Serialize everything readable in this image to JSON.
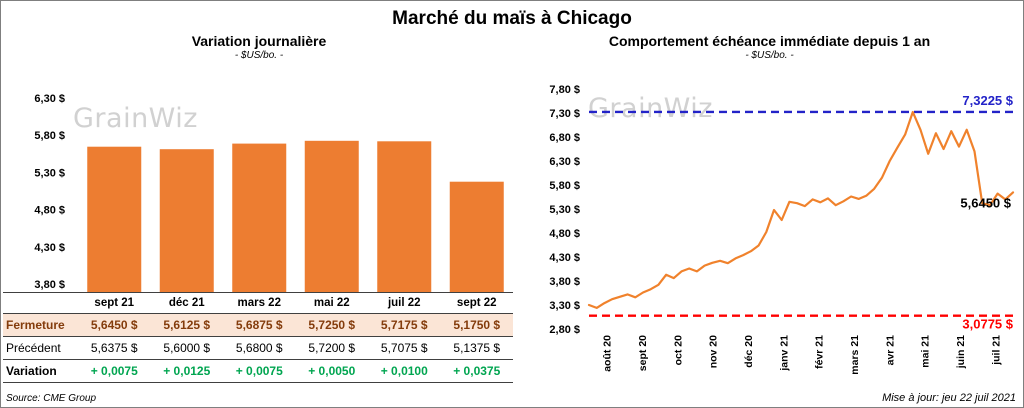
{
  "page": {
    "title": "Marché du maïs à Chicago",
    "source": "Source: CME Group",
    "updated": "Mise à jour: jeu 22 juil 2021",
    "watermark": "GrainWiz"
  },
  "colors": {
    "accent_orange": "#ED7D31",
    "close_row_bg": "#FBE5D6",
    "close_row_text": "#843C0C",
    "variation_green": "#00A550",
    "max_line_blue": "#2323C8",
    "min_line_red": "#FF0000"
  },
  "chart_data": [
    {
      "type": "bar",
      "title": "Variation journalière",
      "subtitle": "- $US/bo. -",
      "categories": [
        "sept 21",
        "déc 21",
        "mars 22",
        "mai 22",
        "juil 22",
        "sept 22"
      ],
      "values": [
        5.645,
        5.6125,
        5.6875,
        5.725,
        5.7175,
        5.175
      ],
      "ylim": [
        3.8,
        6.3
      ],
      "ytick_labels": [
        "3,80 $",
        "4,30 $",
        "4,80 $",
        "5,30 $",
        "5,80 $",
        "6,30 $"
      ],
      "bar_color": "#ED7D31",
      "grid": false,
      "legend": "none"
    },
    {
      "type": "line",
      "title": "Comportement échéance immédiate depuis 1 an",
      "subtitle": "- $US/bo. -",
      "x_labels": [
        "août 20",
        "sept 20",
        "oct 20",
        "nov 20",
        "déc 20",
        "janv 21",
        "févr 21",
        "mars 21",
        "avr 21",
        "mai 21",
        "juin 21",
        "juil 21"
      ],
      "values": [
        3.3,
        3.24,
        3.34,
        3.42,
        3.47,
        3.52,
        3.46,
        3.56,
        3.63,
        3.72,
        3.93,
        3.86,
        4.0,
        4.06,
        4.0,
        4.12,
        4.18,
        4.22,
        4.17,
        4.27,
        4.34,
        4.42,
        4.54,
        4.82,
        5.28,
        5.07,
        5.45,
        5.42,
        5.36,
        5.5,
        5.44,
        5.52,
        5.38,
        5.46,
        5.56,
        5.51,
        5.58,
        5.72,
        5.95,
        6.3,
        6.58,
        6.85,
        7.32,
        6.95,
        6.45,
        6.88,
        6.55,
        6.92,
        6.6,
        6.95,
        6.5,
        5.42,
        5.38,
        5.62,
        5.5,
        5.645
      ],
      "ylim": [
        2.8,
        7.8
      ],
      "ytick_labels": [
        "2,80 $",
        "3,30 $",
        "3,80 $",
        "4,30 $",
        "4,80 $",
        "5,30 $",
        "5,80 $",
        "6,30 $",
        "6,80 $",
        "7,30 $",
        "7,80 $"
      ],
      "line_color": "#F0822C",
      "max_line": {
        "value": 7.3225,
        "label": "7,3225 $",
        "color": "#2323C8"
      },
      "min_line": {
        "value": 3.0775,
        "label": "3,0775 $",
        "color": "#FF0000"
      },
      "last_point_label": "5,6450 $",
      "grid": false,
      "legend": "none"
    }
  ],
  "table": {
    "header": [
      "sept 21",
      "déc 21",
      "mars 22",
      "mai 22",
      "juil 22",
      "sept 22"
    ],
    "rows": [
      {
        "label": "Fermeture",
        "style": "close",
        "values": [
          "5,6450  $",
          "5,6125  $",
          "5,6875  $",
          "5,7250  $",
          "5,7175  $",
          "5,1750  $"
        ]
      },
      {
        "label": "Précédent",
        "style": "previous",
        "values": [
          "5,6375  $",
          "5,6000  $",
          "5,6800  $",
          "5,7200  $",
          "5,7075  $",
          "5,1375  $"
        ]
      },
      {
        "label": "Variation",
        "style": "variation",
        "values": [
          "+ 0,0075",
          "+ 0,0125",
          "+ 0,0075",
          "+ 0,0050",
          "+ 0,0100",
          "+ 0,0375"
        ]
      }
    ]
  }
}
